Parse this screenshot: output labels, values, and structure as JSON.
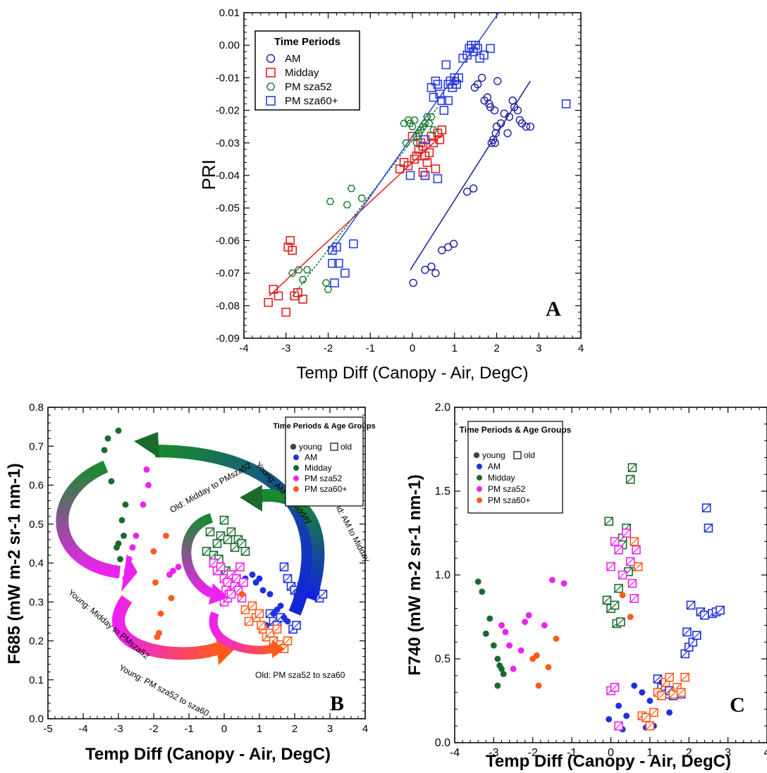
{
  "colors": {
    "am": "#1a1aa0",
    "am_fill": "#1f2fe0",
    "midday": "#e02020",
    "pm52": "#167a2e",
    "pm60": "#2a3ee0",
    "pm52_fill": "#ee22ee",
    "pm60_fill": "#ff5a1a",
    "midday_fill": "#1a6a2e"
  },
  "chart_data": [
    {
      "type": "scatter",
      "panel_label": "A",
      "xlabel": "Temp Diff (Canopy - Air, DegC)",
      "ylabel": "PRI",
      "xlim": [
        -4,
        4
      ],
      "ylim": [
        -0.09,
        0.01
      ],
      "xticks": [
        "-4",
        "-3",
        "-2",
        "-1",
        "0",
        "1",
        "2",
        "3",
        "4"
      ],
      "yticks": [
        "0.01",
        "0.00",
        "-0.01",
        "-0.02",
        "-0.03",
        "-0.04",
        "-0.05",
        "-0.06",
        "-0.07",
        "-0.08",
        "-0.09"
      ],
      "grid": false,
      "legend": {
        "title": "Time Periods",
        "position": "top-left"
      },
      "series": [
        {
          "name": "AM",
          "marker": "open-circle",
          "color": "#1a1aa0",
          "x": [
            0.02,
            1.03,
            1.48,
            1.55,
            1.65,
            1.71,
            1.82,
            1.88,
            1.92,
            1.96,
            1.98,
            2.0,
            2.1,
            2.18,
            2.3,
            2.38,
            2.42,
            2.5,
            2.55,
            2.6,
            2.7,
            2.8,
            1.78,
            1.85,
            1.95,
            2.02,
            2.26,
            1.3,
            1.45,
            0.98,
            0.85,
            0.7,
            0.45,
            0.55,
            0.3
          ],
          "y": [
            -0.073,
            -0.011,
            -0.013,
            -0.012,
            -0.01,
            -0.017,
            -0.018,
            -0.03,
            -0.029,
            -0.03,
            -0.027,
            -0.025,
            -0.024,
            -0.021,
            -0.022,
            -0.017,
            -0.019,
            -0.02,
            -0.023,
            -0.024,
            -0.025,
            -0.025,
            -0.016,
            -0.019,
            -0.02,
            -0.011,
            -0.027,
            -0.045,
            -0.044,
            -0.061,
            -0.062,
            -0.063,
            -0.068,
            -0.07,
            -0.069
          ]
        },
        {
          "name": "Midday",
          "marker": "open-square",
          "color": "#e02020",
          "x": [
            -3.42,
            -3.3,
            -3.18,
            -3.0,
            -2.95,
            -2.9,
            -2.85,
            -2.8,
            -2.72,
            -2.6,
            -0.3,
            -0.2,
            -0.1,
            0.0,
            0.05,
            0.1,
            0.15,
            0.2,
            0.25,
            0.3,
            0.35,
            0.4,
            0.45,
            0.5,
            0.55,
            0.6,
            0.65,
            0.7,
            0.25,
            0.3
          ],
          "y": [
            -0.079,
            -0.075,
            -0.077,
            -0.082,
            -0.062,
            -0.06,
            -0.063,
            -0.077,
            -0.076,
            -0.078,
            -0.038,
            -0.036,
            -0.037,
            -0.028,
            -0.035,
            -0.034,
            -0.032,
            -0.03,
            -0.031,
            -0.034,
            -0.036,
            -0.033,
            -0.028,
            -0.03,
            -0.038,
            -0.027,
            -0.029,
            -0.026,
            -0.039,
            -0.04
          ]
        },
        {
          "name": "PM sza52",
          "marker": "open-hexagon",
          "color": "#167a2e",
          "x": [
            -2.85,
            -2.7,
            -2.6,
            -2.5,
            -2.05,
            -2.0,
            -1.95,
            -1.55,
            -1.45,
            -1.2,
            -0.2,
            -0.1,
            -0.05,
            0.0,
            0.05,
            0.1,
            0.15,
            0.2,
            0.25,
            0.3,
            0.35,
            0.4,
            0.45,
            0.5,
            -0.15,
            0.1
          ],
          "y": [
            -0.07,
            -0.069,
            -0.072,
            -0.069,
            -0.073,
            -0.075,
            -0.048,
            -0.049,
            -0.044,
            -0.047,
            -0.024,
            -0.023,
            -0.024,
            -0.025,
            -0.023,
            -0.028,
            -0.027,
            -0.026,
            -0.025,
            -0.024,
            -0.022,
            -0.024,
            -0.022,
            -0.026,
            -0.03,
            -0.03
          ]
        },
        {
          "name": "PM sza60+",
          "marker": "open-square",
          "color": "#2a3ee0",
          "x": [
            -1.9,
            -1.8,
            -1.75,
            -1.6,
            -1.4,
            -1.9,
            -1.85,
            -0.05,
            0.3,
            0.45,
            0.5,
            0.55,
            0.6,
            0.65,
            0.7,
            0.75,
            0.8,
            0.85,
            0.9,
            0.95,
            1.0,
            1.05,
            1.1,
            1.2,
            1.3,
            1.35,
            1.4,
            1.45,
            1.5,
            1.55,
            1.6,
            1.7,
            1.85,
            3.65,
            0.85,
            0.3,
            0.6
          ],
          "y": [
            -0.063,
            -0.062,
            -0.067,
            -0.07,
            -0.061,
            -0.067,
            -0.073,
            -0.04,
            -0.04,
            -0.013,
            -0.016,
            -0.011,
            -0.012,
            -0.015,
            -0.017,
            -0.02,
            -0.006,
            -0.012,
            -0.011,
            -0.013,
            -0.01,
            -0.012,
            -0.01,
            -0.004,
            -0.003,
            -0.001,
            0.0,
            -0.002,
            0.0,
            -0.001,
            -0.004,
            -0.003,
            -0.001,
            -0.018,
            -0.017,
            -0.029,
            -0.041
          ]
        }
      ],
      "fit_lines": [
        {
          "series": "AM",
          "x": [
            -0.05,
            2.8
          ],
          "y": [
            -0.069,
            -0.011
          ]
        },
        {
          "series": "Midday",
          "x": [
            -3.4,
            0.75
          ],
          "y": [
            -0.077,
            -0.027
          ]
        },
        {
          "series": "PM sza52",
          "x": [
            -2.9,
            0.6
          ],
          "y": [
            -0.078,
            -0.019
          ]
        },
        {
          "series": "PM sza60+",
          "x": [
            -1.95,
            2.05
          ],
          "y": [
            -0.064,
            0.01
          ]
        }
      ]
    },
    {
      "type": "scatter",
      "panel_label": "B",
      "xlabel": "Temp Diff (Canopy - Air, DegC)",
      "ylabel": "F685 (mW m-2 sr-1 nm-1)",
      "xlim": [
        -5,
        4
      ],
      "ylim": [
        0.0,
        0.8
      ],
      "xticks": [
        "-5",
        "-4",
        "-3",
        "-2",
        "-1",
        "0",
        "1",
        "2",
        "3",
        "4"
      ],
      "yticks": [
        "0.8",
        "0.7",
        "0.6",
        "0.5",
        "0.4",
        "0.3",
        "0.2",
        "0.1",
        "0.0"
      ],
      "grid": false,
      "legend": {
        "title": "Time Periods & Age Groups",
        "position": "top-right",
        "age_groups": [
          "young",
          "old"
        ]
      },
      "series": [
        {
          "name": "AM",
          "color": "#1f2fe0",
          "young": {
            "x": [
              0.6,
              0.8,
              0.9,
              1.0,
              1.1,
              1.3,
              1.5,
              1.6,
              1.7,
              1.8,
              1.4,
              1.2
            ],
            "y": [
              0.36,
              0.37,
              0.35,
              0.36,
              0.33,
              0.32,
              0.28,
              0.29,
              0.26,
              0.25,
              0.27,
              0.24
            ]
          },
          "old": {
            "x": [
              1.7,
              1.8,
              1.9,
              2.0,
              2.1,
              2.2,
              2.3,
              2.4,
              2.5,
              2.6,
              2.7,
              2.8,
              1.3,
              1.4,
              1.5,
              1.6,
              1.95,
              2.05
            ],
            "y": [
              0.39,
              0.36,
              0.34,
              0.33,
              0.32,
              0.34,
              0.35,
              0.33,
              0.34,
              0.33,
              0.31,
              0.32,
              0.27,
              0.25,
              0.24,
              0.26,
              0.23,
              0.24
            ]
          }
        },
        {
          "name": "Midday",
          "color": "#1a6a2e",
          "young": {
            "x": [
              -3.0,
              -3.3,
              -3.4,
              -3.2,
              -2.8,
              -2.9,
              -2.85,
              -3.0,
              -3.05,
              -2.95
            ],
            "y": [
              0.74,
              0.72,
              0.69,
              0.61,
              0.55,
              0.51,
              0.47,
              0.45,
              0.44,
              0.41
            ]
          },
          "old": {
            "x": [
              -0.5,
              -0.4,
              -0.3,
              -0.2,
              -0.1,
              0.0,
              0.1,
              0.2,
              0.3,
              0.4,
              0.5,
              0.6,
              -0.15,
              0.05
            ],
            "y": [
              0.43,
              0.48,
              0.42,
              0.45,
              0.47,
              0.51,
              0.46,
              0.48,
              0.44,
              0.46,
              0.45,
              0.43,
              0.41,
              0.38
            ]
          }
        },
        {
          "name": "PM sza52",
          "color": "#ee22ee",
          "young": {
            "x": [
              -2.2,
              -2.15,
              -2.3,
              -2.5,
              -2.6,
              -2.7,
              -2.75,
              -2.8,
              -1.45,
              -1.55,
              -1.3
            ],
            "y": [
              0.64,
              0.6,
              0.55,
              0.47,
              0.44,
              0.41,
              0.38,
              0.36,
              0.38,
              0.37,
              0.39
            ]
          },
          "old": {
            "x": [
              -0.3,
              -0.2,
              -0.1,
              0.0,
              0.05,
              0.1,
              0.15,
              0.2,
              0.3,
              0.35,
              0.4,
              0.45,
              0.5,
              0.55,
              0.0,
              0.1,
              0.2
            ],
            "y": [
              0.4,
              0.38,
              0.39,
              0.36,
              0.33,
              0.35,
              0.32,
              0.37,
              0.34,
              0.36,
              0.33,
              0.39,
              0.31,
              0.35,
              0.3,
              0.31,
              0.32
            ]
          }
        },
        {
          "name": "PM sza60+",
          "color": "#ff5a1a",
          "young": {
            "x": [
              -1.65,
              -2.0,
              -1.95,
              -1.8,
              -1.85,
              -1.5,
              -1.9,
              -0.15,
              0.5
            ],
            "y": [
              0.47,
              0.43,
              0.35,
              0.27,
              0.22,
              0.31,
              0.21,
              0.21,
              0.32
            ]
          },
          "old": {
            "x": [
              0.6,
              0.8,
              0.9,
              1.0,
              1.1,
              1.2,
              1.3,
              1.4,
              1.5,
              1.6,
              1.7,
              1.8,
              0.7,
              1.05
            ],
            "y": [
              0.28,
              0.29,
              0.26,
              0.27,
              0.23,
              0.21,
              0.22,
              0.2,
              0.23,
              0.19,
              0.18,
              0.2,
              0.25,
              0.24
            ]
          }
        }
      ],
      "annotations": [
        {
          "text": "Young: AM to Midday"
        },
        {
          "text": "Old: AM to Midday"
        },
        {
          "text": "Old: Midday to PMsza52"
        },
        {
          "text": "Young: Midday to PMsza52"
        },
        {
          "text": "Young: PM sza52 to sza60"
        },
        {
          "text": "Old: PM sza52 to sza60"
        }
      ]
    },
    {
      "type": "scatter",
      "panel_label": "C",
      "xlabel": "Temp Diff (Canopy - Air, DegC)",
      "ylabel": "F740 (mW m-2 sr-1 nm-1)",
      "xlim": [
        -4,
        4
      ],
      "ylim": [
        0.0,
        2.0
      ],
      "xticks": [
        "-4",
        "-3",
        "-2",
        "-1",
        "0",
        "1",
        "2",
        "3",
        "4"
      ],
      "yticks": [
        "2.0",
        "1.5",
        "1.0",
        "0.5",
        "0.0"
      ],
      "grid": false,
      "legend": {
        "title": "Time Periods & Age Groups",
        "position": "top-left",
        "age_groups": [
          "young",
          "old"
        ]
      },
      "series": [
        {
          "name": "AM",
          "color": "#1f2fe0",
          "young": {
            "x": [
              -0.05,
              0.2,
              0.4,
              0.6,
              0.8,
              1.0,
              1.3,
              1.5,
              0.9,
              1.1,
              0.3
            ],
            "y": [
              0.14,
              0.22,
              0.16,
              0.34,
              0.3,
              0.25,
              0.36,
              0.18,
              0.09,
              0.1,
              0.08
            ]
          },
          "old": {
            "x": [
              1.2,
              1.3,
              1.4,
              1.5,
              1.6,
              1.7,
              1.8,
              1.9,
              2.0,
              2.1,
              2.2,
              2.3,
              2.4,
              2.45,
              2.5,
              2.6,
              2.7,
              2.8,
              1.95,
              2.05
            ],
            "y": [
              0.38,
              0.33,
              0.29,
              0.31,
              0.28,
              0.3,
              0.29,
              0.53,
              0.57,
              0.6,
              0.64,
              0.78,
              0.76,
              1.4,
              1.28,
              0.77,
              0.78,
              0.79,
              0.66,
              0.82
            ]
          }
        },
        {
          "name": "Midday",
          "color": "#1a6a2e",
          "young": {
            "x": [
              -3.4,
              -3.3,
              -3.1,
              -3.2,
              -3.0,
              -2.9,
              -2.85,
              -2.8,
              -2.75,
              -2.9
            ],
            "y": [
              0.96,
              0.9,
              0.74,
              0.65,
              0.58,
              0.5,
              0.46,
              0.44,
              0.41,
              0.34
            ]
          },
          "old": {
            "x": [
              -0.1,
              0.0,
              0.1,
              0.2,
              0.3,
              0.4,
              0.5,
              0.55,
              0.6,
              -0.05,
              0.15,
              0.25,
              0.45,
              0.3
            ],
            "y": [
              0.85,
              0.8,
              0.82,
              0.92,
              1.22,
              1.28,
              1.57,
              1.64,
              1.05,
              1.32,
              0.71,
              0.72,
              1.02,
              1.18
            ]
          }
        },
        {
          "name": "PM sza52",
          "color": "#ee22ee",
          "young": {
            "x": [
              -2.8,
              -2.7,
              -2.6,
              -2.5,
              -2.3,
              -2.2,
              -2.1,
              -1.9,
              -1.5,
              -1.2,
              -1.7
            ],
            "y": [
              0.7,
              0.66,
              0.58,
              0.44,
              0.55,
              0.72,
              0.76,
              0.52,
              0.97,
              0.95,
              0.7
            ]
          },
          "old": {
            "x": [
              0.0,
              0.1,
              0.2,
              0.3,
              0.4,
              0.5,
              0.55,
              0.6,
              0.65,
              0.0,
              0.1,
              0.2
            ],
            "y": [
              1.05,
              1.2,
              1.15,
              1.0,
              1.25,
              1.08,
              0.95,
              0.86,
              1.15,
              0.31,
              0.33,
              0.1
            ]
          }
        },
        {
          "name": "PM sza60+",
          "color": "#ff5a1a",
          "young": {
            "x": [
              -1.9,
              -2.0,
              -1.85,
              -1.6,
              -1.4,
              0.5,
              0.3
            ],
            "y": [
              0.52,
              0.5,
              0.34,
              0.45,
              0.62,
              0.75,
              0.88
            ]
          },
          "old": {
            "x": [
              0.8,
              0.9,
              1.0,
              1.1,
              1.2,
              1.3,
              1.4,
              1.5,
              1.6,
              1.7,
              1.8,
              1.9,
              0.6,
              0.7
            ],
            "y": [
              0.16,
              0.15,
              0.1,
              0.18,
              0.3,
              0.28,
              0.36,
              0.39,
              0.29,
              0.33,
              0.3,
              0.39,
              1.2,
              1.05
            ]
          }
        }
      ]
    }
  ]
}
